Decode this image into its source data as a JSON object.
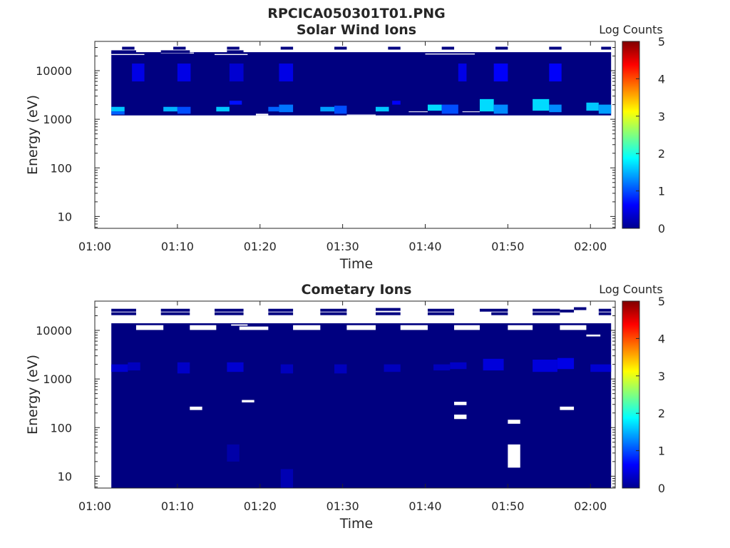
{
  "figure": {
    "title": "RPCICA050301T01.PNG"
  },
  "chart_data": [
    {
      "type": "heatmap",
      "title": "Solar Wind Ions",
      "xlabel": "Time",
      "ylabel": "Energy (eV)",
      "xlim": [
        "01:00",
        "02:03"
      ],
      "xticks": [
        "01:00",
        "01:10",
        "01:20",
        "01:30",
        "01:40",
        "01:50",
        "02:00"
      ],
      "ylim": [
        5.7,
        40000
      ],
      "yscale": "log",
      "yticks": [
        10,
        100,
        1000,
        10000
      ],
      "ytick_labels": [
        "10",
        "100",
        "1000",
        "10000"
      ],
      "colorbar": {
        "label": "Log Counts",
        "min": 0,
        "max": 5,
        "ticks": [
          "0",
          "1",
          "2",
          "3",
          "4",
          "5"
        ]
      },
      "data_start": "01:02",
      "data_end": "02:02.5",
      "background_value": 0,
      "energy_range": [
        1200,
        24000
      ],
      "intensity_cells": [
        {
          "t0": "01:02",
          "t1": "01:03.6",
          "e0": 1450,
          "e1": 1800,
          "v": 1.6
        },
        {
          "t0": "01:02",
          "t1": "01:03.6",
          "e0": 1250,
          "e1": 1450,
          "v": 1.1
        },
        {
          "t0": "01:04.5",
          "t1": "01:06",
          "e0": 6000,
          "e1": 14000,
          "v": 0.5
        },
        {
          "t0": "01:08.3",
          "t1": "01:10",
          "e0": 1450,
          "e1": 1800,
          "v": 1.5
        },
        {
          "t0": "01:10",
          "t1": "01:11.6",
          "e0": 1300,
          "e1": 1800,
          "v": 1.0
        },
        {
          "t0": "01:10",
          "t1": "01:11.6",
          "e0": 6000,
          "e1": 14000,
          "v": 0.5
        },
        {
          "t0": "01:14.7",
          "t1": "01:16.3",
          "e0": 1450,
          "e1": 1800,
          "v": 1.6
        },
        {
          "t0": "01:16.3",
          "t1": "01:17.8",
          "e0": 2000,
          "e1": 2400,
          "v": 0.7
        },
        {
          "t0": "01:16.3",
          "t1": "01:18",
          "e0": 6000,
          "e1": 14000,
          "v": 0.4
        },
        {
          "t0": "01:21",
          "t1": "01:22.3",
          "e0": 1450,
          "e1": 1800,
          "v": 1.1
        },
        {
          "t0": "01:22.3",
          "t1": "01:24",
          "e0": 1400,
          "e1": 2000,
          "v": 1.2
        },
        {
          "t0": "01:22.3",
          "t1": "01:24",
          "e0": 6000,
          "e1": 14000,
          "v": 0.5
        },
        {
          "t0": "01:27.3",
          "t1": "01:29",
          "e0": 1450,
          "e1": 1800,
          "v": 1.4
        },
        {
          "t0": "01:29",
          "t1": "01:30.5",
          "e0": 1300,
          "e1": 1900,
          "v": 1.0
        },
        {
          "t0": "01:34",
          "t1": "01:35.6",
          "e0": 1450,
          "e1": 1800,
          "v": 1.6
        },
        {
          "t0": "01:36",
          "t1": "01:37",
          "e0": 2000,
          "e1": 2400,
          "v": 0.6
        },
        {
          "t0": "01:40.3",
          "t1": "01:42",
          "e0": 1500,
          "e1": 2000,
          "v": 1.7
        },
        {
          "t0": "01:42",
          "t1": "01:44",
          "e0": 1300,
          "e1": 2000,
          "v": 1.0
        },
        {
          "t0": "01:44",
          "t1": "01:45",
          "e0": 6000,
          "e1": 14000,
          "v": 0.5
        },
        {
          "t0": "01:46.6",
          "t1": "01:48.3",
          "e0": 1450,
          "e1": 2600,
          "v": 1.7
        },
        {
          "t0": "01:48.3",
          "t1": "01:50",
          "e0": 1300,
          "e1": 2000,
          "v": 1.3
        },
        {
          "t0": "01:48.3",
          "t1": "01:50",
          "e0": 6000,
          "e1": 14000,
          "v": 0.6
        },
        {
          "t0": "01:53",
          "t1": "01:55",
          "e0": 1500,
          "e1": 2600,
          "v": 1.7
        },
        {
          "t0": "01:55",
          "t1": "01:56.5",
          "e0": 1400,
          "e1": 2000,
          "v": 1.3
        },
        {
          "t0": "01:55",
          "t1": "01:56.5",
          "e0": 6000,
          "e1": 14000,
          "v": 0.6
        },
        {
          "t0": "01:59.5",
          "t1": "02:01",
          "e0": 1500,
          "e1": 2200,
          "v": 1.6
        },
        {
          "t0": "02:01",
          "t1": "02:02.5",
          "e0": 1300,
          "e1": 2000,
          "v": 1.4
        }
      ],
      "empty_cells": [
        {
          "t0": "01:02",
          "t1": "01:06",
          "e0": 21000,
          "e1": 22000
        },
        {
          "t0": "01:08",
          "t1": "01:12",
          "e0": 22500,
          "e1": 23500
        },
        {
          "t0": "01:14.5",
          "t1": "01:18.5",
          "e0": 21000,
          "e1": 22000
        },
        {
          "t0": "01:19.5",
          "t1": "01:21",
          "e0": 1200,
          "e1": 1300
        },
        {
          "t0": "01:30.5",
          "t1": "01:34",
          "e0": 1200,
          "e1": 1250
        },
        {
          "t0": "01:38",
          "t1": "01:40.3",
          "e0": 1400,
          "e1": 1450
        },
        {
          "t0": "01:40",
          "t1": "01:46",
          "e0": 21500,
          "e1": 22500
        },
        {
          "t0": "01:44.5",
          "t1": "01:46.6",
          "e0": 1400,
          "e1": 1450
        }
      ],
      "top_lines": [
        {
          "t0": "01:03.3",
          "t1": "01:04.8",
          "e": 29000
        },
        {
          "t0": "01:02",
          "t1": "01:05",
          "e": 24500
        },
        {
          "t0": "01:09.5",
          "t1": "01:11",
          "e": 29000
        },
        {
          "t0": "01:08",
          "t1": "01:11.5",
          "e": 24500
        },
        {
          "t0": "01:16",
          "t1": "01:17.5",
          "e": 29000
        },
        {
          "t0": "01:16",
          "t1": "01:18",
          "e": 24500
        },
        {
          "t0": "01:22.5",
          "t1": "01:24",
          "e": 29000
        },
        {
          "t0": "01:29",
          "t1": "01:30.5",
          "e": 29000
        },
        {
          "t0": "01:35.5",
          "t1": "01:37",
          "e": 29000
        },
        {
          "t0": "01:42",
          "t1": "01:43.5",
          "e": 29000
        },
        {
          "t0": "01:48.5",
          "t1": "01:50",
          "e": 29000
        },
        {
          "t0": "01:55",
          "t1": "01:56.5",
          "e": 29000
        },
        {
          "t0": "02:01.3",
          "t1": "02:02.5",
          "e": 29000
        }
      ]
    },
    {
      "type": "heatmap",
      "title": "Cometary Ions",
      "xlabel": "Time",
      "ylabel": "Energy (eV)",
      "xlim": [
        "01:00",
        "02:03"
      ],
      "xticks": [
        "01:00",
        "01:10",
        "01:20",
        "01:30",
        "01:40",
        "01:50",
        "02:00"
      ],
      "ylim": [
        5.7,
        40000
      ],
      "yscale": "log",
      "yticks": [
        10,
        100,
        1000,
        10000
      ],
      "ytick_labels": [
        "10",
        "100",
        "1000",
        "10000"
      ],
      "colorbar": {
        "label": "Log Counts",
        "min": 0,
        "max": 5,
        "ticks": [
          "0",
          "1",
          "2",
          "3",
          "4",
          "5"
        ]
      },
      "data_start": "01:02",
      "data_end": "02:02.5",
      "background_value": 0,
      "energy_range": [
        5.7,
        14000
      ],
      "intensity_cells": [
        {
          "t0": "01:02",
          "t1": "01:04",
          "e0": 1400,
          "e1": 2000,
          "v": 0.4
        },
        {
          "t0": "01:04",
          "t1": "01:05.5",
          "e0": 1500,
          "e1": 2200,
          "v": 0.3
        },
        {
          "t0": "01:10",
          "t1": "01:11.5",
          "e0": 1300,
          "e1": 2200,
          "v": 0.35
        },
        {
          "t0": "01:16",
          "t1": "01:18",
          "e0": 1400,
          "e1": 2200,
          "v": 0.4
        },
        {
          "t0": "01:22.5",
          "t1": "01:24",
          "e0": 1300,
          "e1": 2000,
          "v": 0.3
        },
        {
          "t0": "01:29",
          "t1": "01:30.5",
          "e0": 1300,
          "e1": 2000,
          "v": 0.3
        },
        {
          "t0": "01:35",
          "t1": "01:37",
          "e0": 1400,
          "e1": 2000,
          "v": 0.3
        },
        {
          "t0": "01:41",
          "t1": "01:43",
          "e0": 1500,
          "e1": 2000,
          "v": 0.3
        },
        {
          "t0": "01:43",
          "t1": "01:45",
          "e0": 1600,
          "e1": 2200,
          "v": 0.35
        },
        {
          "t0": "01:47",
          "t1": "01:49.5",
          "e0": 1500,
          "e1": 2600,
          "v": 0.45
        },
        {
          "t0": "01:53",
          "t1": "01:56",
          "e0": 1400,
          "e1": 2500,
          "v": 0.45
        },
        {
          "t0": "01:56",
          "t1": "01:58",
          "e0": 1600,
          "e1": 2700,
          "v": 0.5
        },
        {
          "t0": "02:00",
          "t1": "02:02.5",
          "e0": 1400,
          "e1": 2000,
          "v": 0.4
        },
        {
          "t0": "01:22.5",
          "t1": "01:24",
          "e0": 5.7,
          "e1": 14,
          "v": 0.25
        },
        {
          "t0": "01:16",
          "t1": "01:17.5",
          "e0": 20,
          "e1": 45,
          "v": 0.2
        }
      ],
      "empty_cells": [
        {
          "t0": "01:05",
          "t1": "01:08.3",
          "e0": 10200,
          "e1": 12800
        },
        {
          "t0": "01:11.5",
          "t1": "01:14.7",
          "e0": 10200,
          "e1": 12800
        },
        {
          "t0": "01:16.5",
          "t1": "01:18.5",
          "e0": 12500,
          "e1": 13300
        },
        {
          "t0": "01:17.5",
          "t1": "01:21",
          "e0": 10200,
          "e1": 12000
        },
        {
          "t0": "01:24",
          "t1": "01:27.3",
          "e0": 10200,
          "e1": 12800
        },
        {
          "t0": "01:30.5",
          "t1": "01:34",
          "e0": 10200,
          "e1": 12800
        },
        {
          "t0": "01:37",
          "t1": "01:40.3",
          "e0": 10200,
          "e1": 12800
        },
        {
          "t0": "01:43.5",
          "t1": "01:46.6",
          "e0": 10200,
          "e1": 12800
        },
        {
          "t0": "01:50",
          "t1": "01:53",
          "e0": 10200,
          "e1": 12800
        },
        {
          "t0": "01:56.3",
          "t1": "01:59.5",
          "e0": 10200,
          "e1": 12800
        },
        {
          "t0": "01:59.5",
          "t1": "02:01.2",
          "e0": 7500,
          "e1": 8200
        },
        {
          "t0": "01:11.5",
          "t1": "01:13",
          "e0": 230,
          "e1": 270
        },
        {
          "t0": "01:17.8",
          "t1": "01:19.3",
          "e0": 330,
          "e1": 370
        },
        {
          "t0": "01:43.5",
          "t1": "01:45",
          "e0": 290,
          "e1": 340
        },
        {
          "t0": "01:43.5",
          "t1": "01:45",
          "e0": 150,
          "e1": 185
        },
        {
          "t0": "01:50",
          "t1": "01:51.5",
          "e0": 120,
          "e1": 145
        },
        {
          "t0": "01:50",
          "t1": "01:51.5",
          "e0": 15,
          "e1": 45
        },
        {
          "t0": "01:56.3",
          "t1": "01:58",
          "e0": 230,
          "e1": 270
        }
      ],
      "top_lines": [
        {
          "t0": "01:02",
          "t1": "01:05",
          "e": 26000
        },
        {
          "t0": "01:02",
          "t1": "01:05",
          "e": 22000
        },
        {
          "t0": "01:08",
          "t1": "01:11.5",
          "e": 26000
        },
        {
          "t0": "01:08",
          "t1": "01:11.5",
          "e": 22000
        },
        {
          "t0": "01:14.5",
          "t1": "01:18",
          "e": 26000
        },
        {
          "t0": "01:14.5",
          "t1": "01:18",
          "e": 22000
        },
        {
          "t0": "01:21",
          "t1": "01:24",
          "e": 26000
        },
        {
          "t0": "01:21",
          "t1": "01:24",
          "e": 22000
        },
        {
          "t0": "01:27.3",
          "t1": "01:30.5",
          "e": 26000
        },
        {
          "t0": "01:27.3",
          "t1": "01:30.5",
          "e": 22000
        },
        {
          "t0": "01:34",
          "t1": "01:37",
          "e": 27000
        },
        {
          "t0": "01:34",
          "t1": "01:37",
          "e": 22000
        },
        {
          "t0": "01:40.3",
          "t1": "01:43.5",
          "e": 26000
        },
        {
          "t0": "01:40.3",
          "t1": "01:43.5",
          "e": 22000
        },
        {
          "t0": "01:46.6",
          "t1": "01:50",
          "e": 26000
        },
        {
          "t0": "01:48",
          "t1": "01:50",
          "e": 22000
        },
        {
          "t0": "01:53",
          "t1": "01:56.3",
          "e": 26000
        },
        {
          "t0": "01:53",
          "t1": "01:56.3",
          "e": 22000
        },
        {
          "t0": "01:56.3",
          "t1": "01:58",
          "e": 25000
        },
        {
          "t0": "01:58",
          "t1": "01:59.5",
          "e": 28000
        },
        {
          "t0": "02:01",
          "t1": "02:02.5",
          "e": 26000
        },
        {
          "t0": "02:01",
          "t1": "02:02.5",
          "e": 22000
        }
      ]
    }
  ]
}
